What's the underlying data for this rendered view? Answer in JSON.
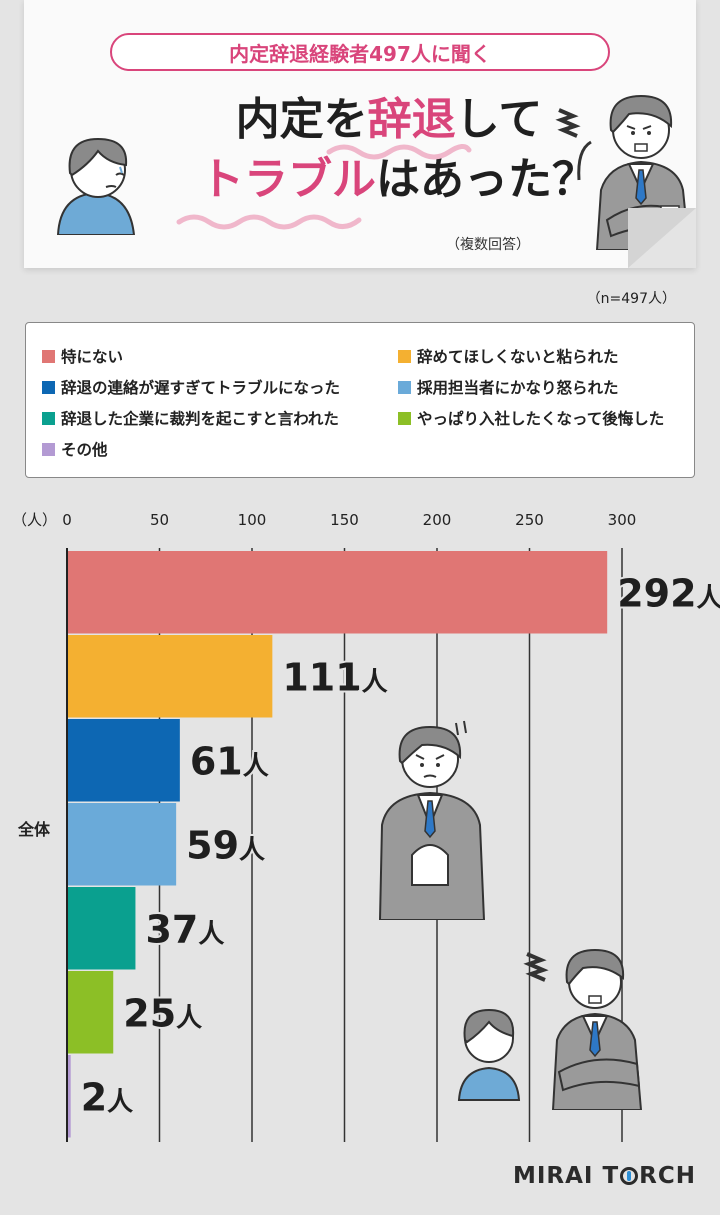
{
  "header": {
    "survey_label": "内定辞退経験者497人に聞く",
    "title_part1": "内定を",
    "title_highlight1": "辞退",
    "title_part2": "して",
    "title_highlight2": "トラブル",
    "title_part3": "はあった？",
    "note": "（複数回答）"
  },
  "sample_size": "（n=497人）",
  "legend": {
    "items": [
      {
        "label": "特にない",
        "color": "#e07674"
      },
      {
        "label": "辞めてほしくないと粘られた",
        "color": "#f4b031"
      },
      {
        "label": "辞退の連絡が遅すぎてトラブルになった",
        "color": "#0d67b3"
      },
      {
        "label": "採用担当者にかなり怒られた",
        "color": "#6aaad9"
      },
      {
        "label": "辞退した企業に裁判を起こすと言われた",
        "color": "#0aa08f"
      },
      {
        "label": "やっぱり入社したくなって後悔した",
        "color": "#8cbf26"
      },
      {
        "label": "その他",
        "color": "#b39ad3"
      }
    ]
  },
  "chart_data": {
    "type": "bar",
    "orientation": "horizontal",
    "unit_label": "（人）",
    "category": "全体",
    "xlim": [
      0,
      300
    ],
    "ticks": [
      0,
      50,
      100,
      150,
      200,
      250,
      300
    ],
    "value_suffix": "人",
    "grid": true,
    "series": [
      {
        "name": "特にない",
        "value": 292,
        "color": "#e07674"
      },
      {
        "name": "辞めてほしくないと粘られた",
        "value": 111,
        "color": "#f4b031"
      },
      {
        "name": "辞退の連絡が遅すぎてトラブルになった",
        "value": 61,
        "color": "#0d67b3"
      },
      {
        "name": "採用担当者にかなり怒られた",
        "value": 59,
        "color": "#6aaad9"
      },
      {
        "name": "辞退した企業に裁判を起こすと言われた",
        "value": 37,
        "color": "#0aa08f"
      },
      {
        "name": "やっぱり入社したくなって後悔した",
        "value": 25,
        "color": "#8cbf26"
      },
      {
        "name": "その他",
        "value": 2,
        "color": "#b39ad3"
      }
    ]
  },
  "brand": {
    "part1": "MIRAI T",
    "part2": "RCH"
  }
}
